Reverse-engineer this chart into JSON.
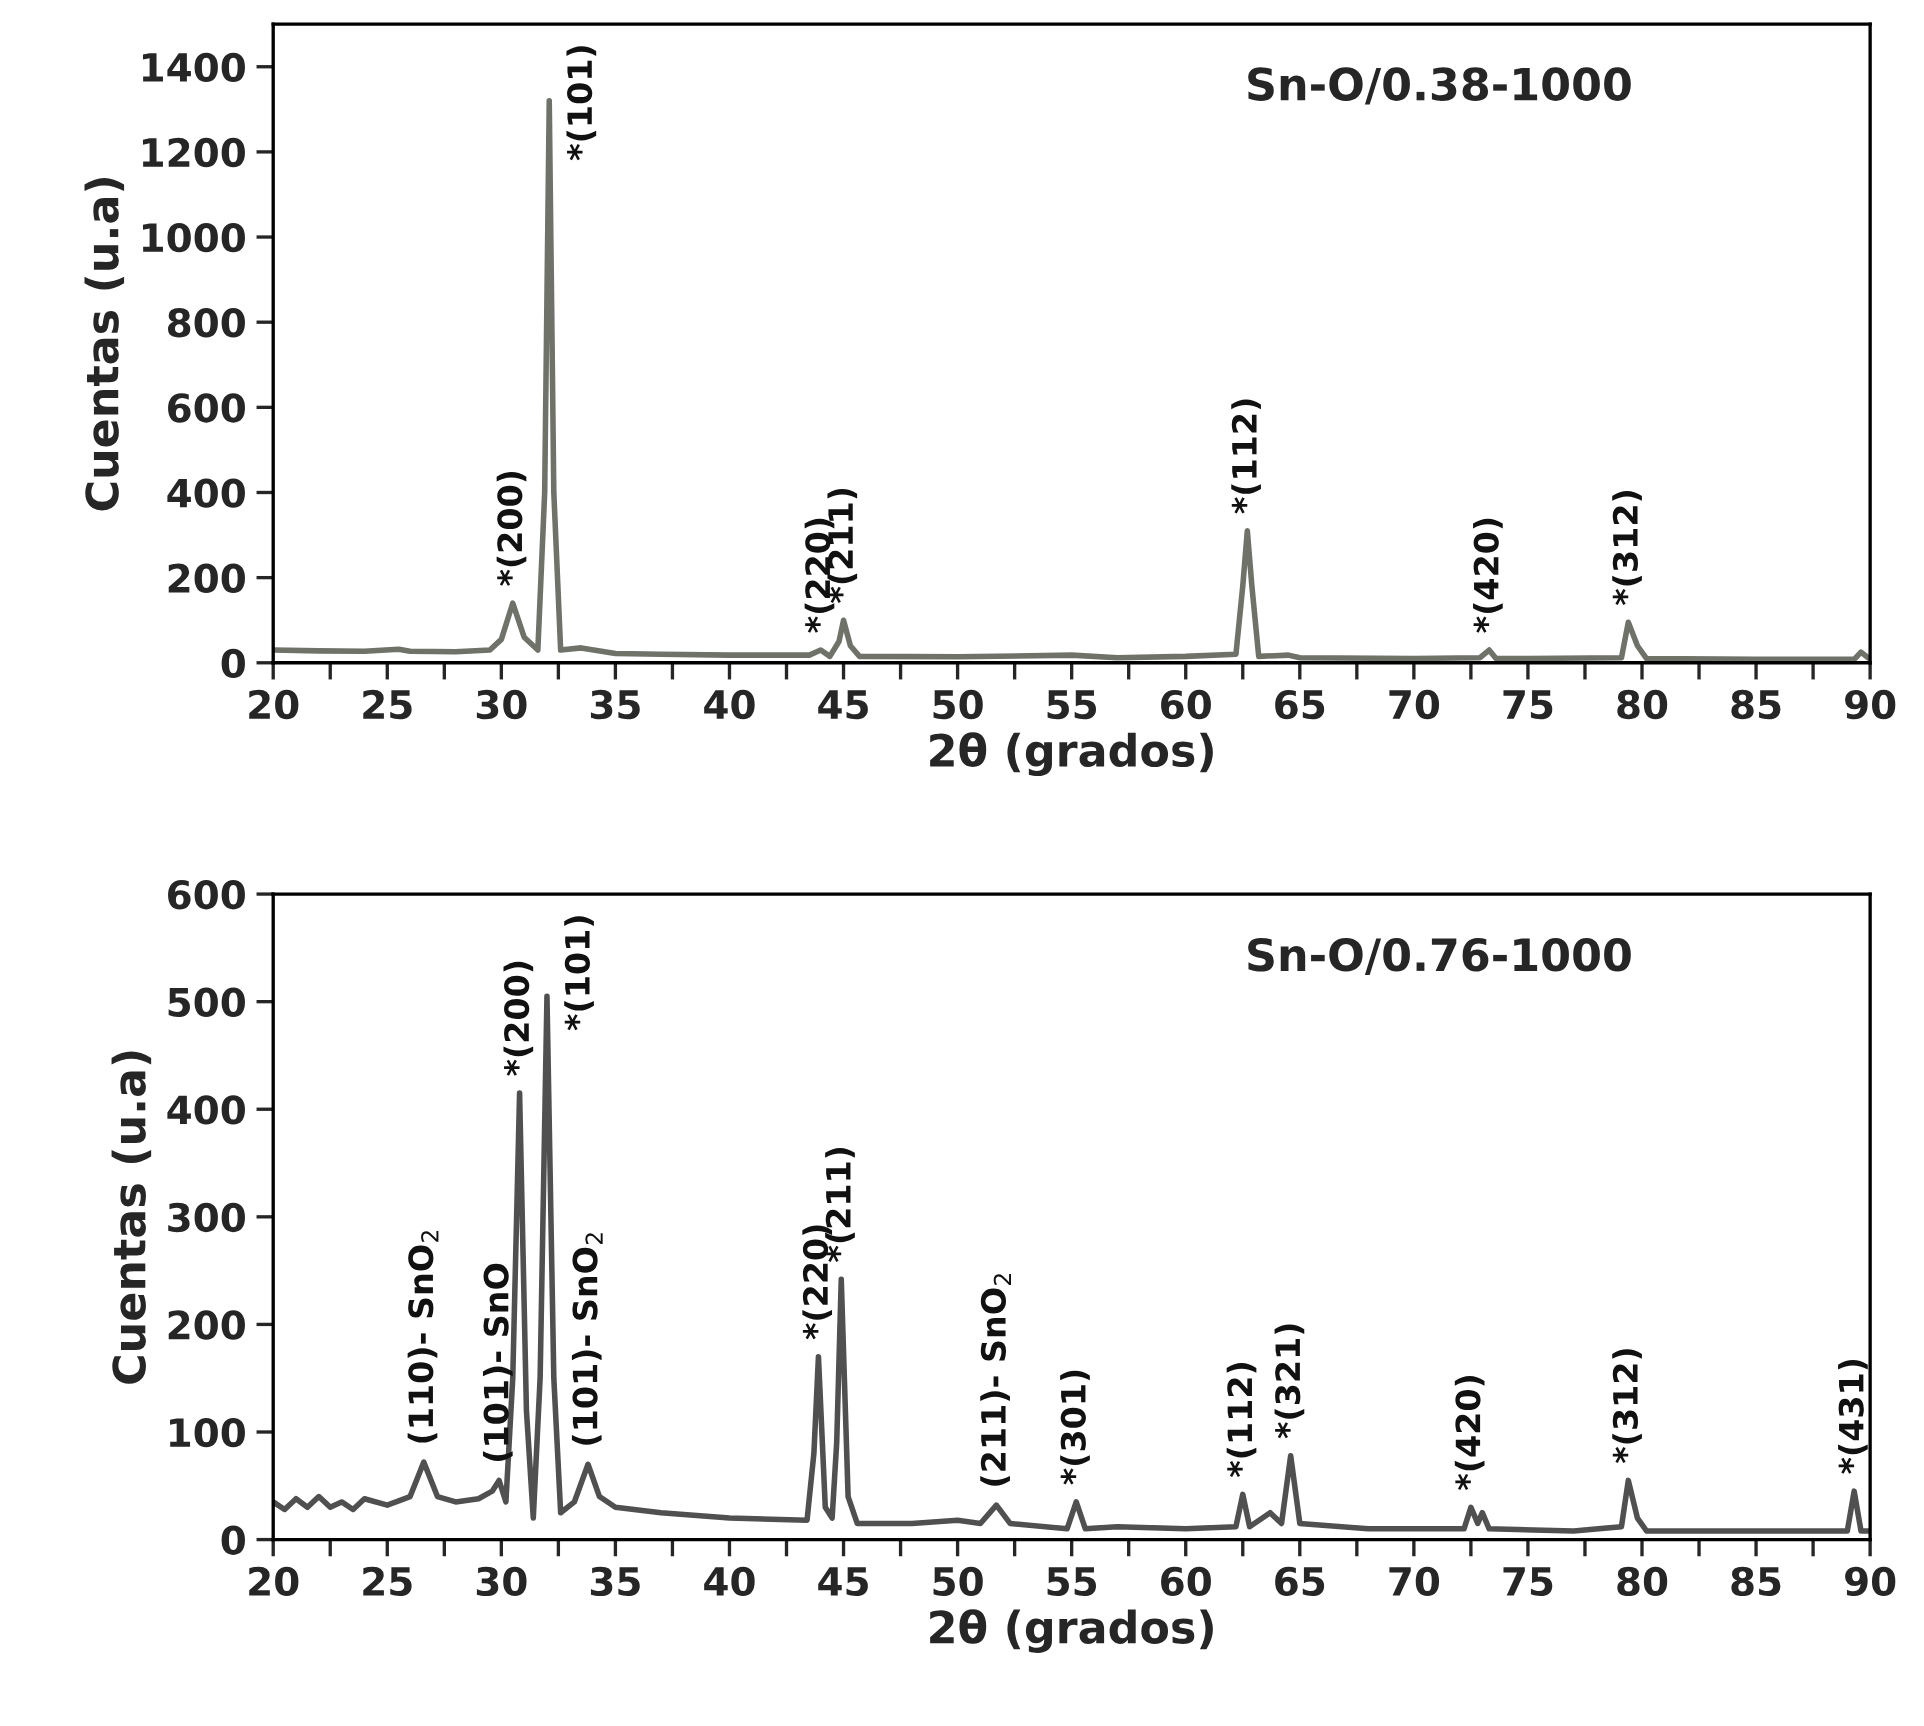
{
  "chart_data": [
    {
      "type": "line",
      "title": "Sn-O/0.38-1000",
      "xlabel": "2θ (grados)",
      "ylabel": "Cuentas (u.a)",
      "xlim": [
        20,
        90
      ],
      "ylim": [
        0,
        1500
      ],
      "xticks": [
        20,
        {
          "value": 22.5,
          "label": null
        },
        25,
        {
          "value": 27.5,
          "label": null
        },
        30,
        {
          "value": 32.5,
          "label": null
        },
        35,
        {
          "value": 37.5,
          "label": null
        },
        40,
        {
          "value": 42.5,
          "label": null
        },
        45,
        {
          "value": 47.5,
          "label": null
        },
        50,
        {
          "value": 52.5,
          "label": null
        },
        55,
        {
          "value": 57.5,
          "label": null
        },
        60,
        {
          "value": 62.5,
          "label": null
        },
        65,
        {
          "value": 67.5,
          "label": null
        },
        70,
        {
          "value": 72.5,
          "label": null
        },
        75,
        {
          "value": 77.5,
          "label": null
        },
        80,
        {
          "value": 82.5,
          "label": null
        },
        85,
        {
          "value": 87.5,
          "label": null
        },
        90
      ],
      "yticks": [
        0,
        200,
        400,
        600,
        800,
        1000,
        1200,
        1400
      ],
      "grid": false,
      "legend": false,
      "series": [
        {
          "color": "#6e7268",
          "x": [
            20,
            22,
            24,
            25.5,
            26,
            28,
            29.5,
            30.0,
            30.5,
            31.0,
            31.6,
            31.9,
            32.1,
            32.3,
            32.6,
            33.5,
            35,
            37,
            40,
            43.5,
            44.0,
            44.4,
            44.8,
            45.0,
            45.3,
            45.7,
            50,
            55,
            57,
            60,
            62.2,
            62.5,
            62.7,
            62.9,
            63.2,
            64.5,
            65,
            70,
            72.9,
            73.3,
            73.6,
            75,
            79.1,
            79.4,
            79.8,
            80.2,
            85,
            89.3,
            89.6,
            90
          ],
          "values": [
            30,
            28,
            27,
            32,
            27,
            26,
            30,
            55,
            140,
            60,
            30,
            400,
            1320,
            400,
            30,
            35,
            22,
            20,
            18,
            18,
            30,
            15,
            50,
            100,
            40,
            15,
            14,
            18,
            12,
            15,
            20,
            180,
            310,
            180,
            15,
            18,
            12,
            10,
            12,
            30,
            10,
            10,
            12,
            95,
            40,
            10,
            8,
            8,
            25,
            8
          ]
        }
      ],
      "annotations": [
        {
          "text": "*(200)",
          "x": 30.5,
          "y": 140
        },
        {
          "text": "*(101)",
          "x": 32.1,
          "y": 1320
        },
        {
          "text": "*(220)",
          "x": 44.0,
          "y": 30
        },
        {
          "text": "*(211)",
          "x": 45.0,
          "y": 100
        },
        {
          "text": "*(112)",
          "x": 62.7,
          "y": 310
        },
        {
          "text": "*(420)",
          "x": 73.3,
          "y": 30
        },
        {
          "text": "*(312)",
          "x": 79.4,
          "y": 95
        }
      ]
    },
    {
      "type": "line",
      "title": "Sn-O/0.76-1000",
      "xlabel": "2θ (grados)",
      "ylabel": "Cuentas (u.a)",
      "xlim": [
        20,
        90
      ],
      "ylim": [
        0,
        600
      ],
      "xticks": [
        20,
        {
          "value": 22.5,
          "label": null
        },
        25,
        {
          "value": 27.5,
          "label": null
        },
        30,
        {
          "value": 32.5,
          "label": null
        },
        35,
        {
          "value": 37.5,
          "label": null
        },
        40,
        {
          "value": 42.5,
          "label": null
        },
        45,
        {
          "value": 47.5,
          "label": null
        },
        50,
        {
          "value": 52.5,
          "label": null
        },
        55,
        {
          "value": 57.5,
          "label": null
        },
        60,
        {
          "value": 62.5,
          "label": null
        },
        65,
        {
          "value": 67.5,
          "label": null
        },
        70,
        {
          "value": 72.5,
          "label": null
        },
        75,
        {
          "value": 77.5,
          "label": null
        },
        80,
        {
          "value": 82.5,
          "label": null
        },
        85,
        {
          "value": 87.5,
          "label": null
        },
        90
      ],
      "yticks": [
        0,
        100,
        200,
        300,
        400,
        500,
        600
      ],
      "grid": false,
      "legend": false,
      "series": [
        {
          "color": "#505050",
          "x": [
            20,
            20.5,
            21,
            21.5,
            22,
            22.5,
            23,
            23.5,
            24,
            25,
            26,
            26.6,
            27.2,
            28,
            29,
            29.6,
            29.9,
            30.2,
            30.5,
            30.8,
            31.1,
            31.4,
            31.7,
            32.0,
            32.3,
            32.6,
            33.2,
            33.8,
            34.3,
            35,
            37,
            40,
            43.4,
            43.7,
            43.9,
            44.2,
            44.5,
            44.7,
            44.9,
            45.2,
            45.6,
            48,
            50,
            51.0,
            51.7,
            52.3,
            54.8,
            55.2,
            55.6,
            57,
            60,
            62.2,
            62.5,
            62.8,
            63.7,
            64.2,
            64.6,
            65.0,
            68,
            72.2,
            72.5,
            72.8,
            73.0,
            73.3,
            77,
            79.1,
            79.4,
            79.8,
            80.2,
            85,
            89.0,
            89.3,
            89.6,
            90
          ],
          "values": [
            35,
            28,
            38,
            30,
            40,
            30,
            35,
            28,
            38,
            32,
            40,
            72,
            40,
            35,
            38,
            45,
            55,
            35,
            150,
            415,
            120,
            20,
            150,
            505,
            150,
            25,
            35,
            70,
            40,
            30,
            25,
            20,
            18,
            80,
            170,
            30,
            20,
            90,
            242,
            40,
            15,
            15,
            18,
            15,
            32,
            15,
            10,
            35,
            10,
            12,
            10,
            12,
            42,
            12,
            25,
            15,
            78,
            15,
            10,
            10,
            30,
            15,
            25,
            10,
            8,
            12,
            55,
            20,
            8,
            8,
            8,
            45,
            8,
            8
          ]
        }
      ],
      "annotations": [
        {
          "text": "(110)- SnO$_{2}$",
          "x": 26.6,
          "y": 72
        },
        {
          "text": "(101)- SnO",
          "x": 29.9,
          "y": 55
        },
        {
          "text": "*(200)",
          "x": 30.8,
          "y": 415
        },
        {
          "text": "*(101)",
          "x": 32.0,
          "y": 505
        },
        {
          "text": "(101)- SnO$_{2}$",
          "x": 33.8,
          "y": 70
        },
        {
          "text": "*(220)",
          "x": 43.9,
          "y": 170
        },
        {
          "text": "*(211)",
          "x": 44.9,
          "y": 242
        },
        {
          "text": "(211)- SnO$_{2}$",
          "x": 51.7,
          "y": 32
        },
        {
          "text": "*(301)",
          "x": 55.2,
          "y": 35
        },
        {
          "text": "*(112)",
          "x": 62.5,
          "y": 42
        },
        {
          "text": "*(321)",
          "x": 64.6,
          "y": 78
        },
        {
          "text": "*(420)",
          "x": 72.5,
          "y": 30
        },
        {
          "text": "*(312)",
          "x": 79.4,
          "y": 55
        },
        {
          "text": "*(431)",
          "x": 89.3,
          "y": 45
        }
      ]
    }
  ]
}
